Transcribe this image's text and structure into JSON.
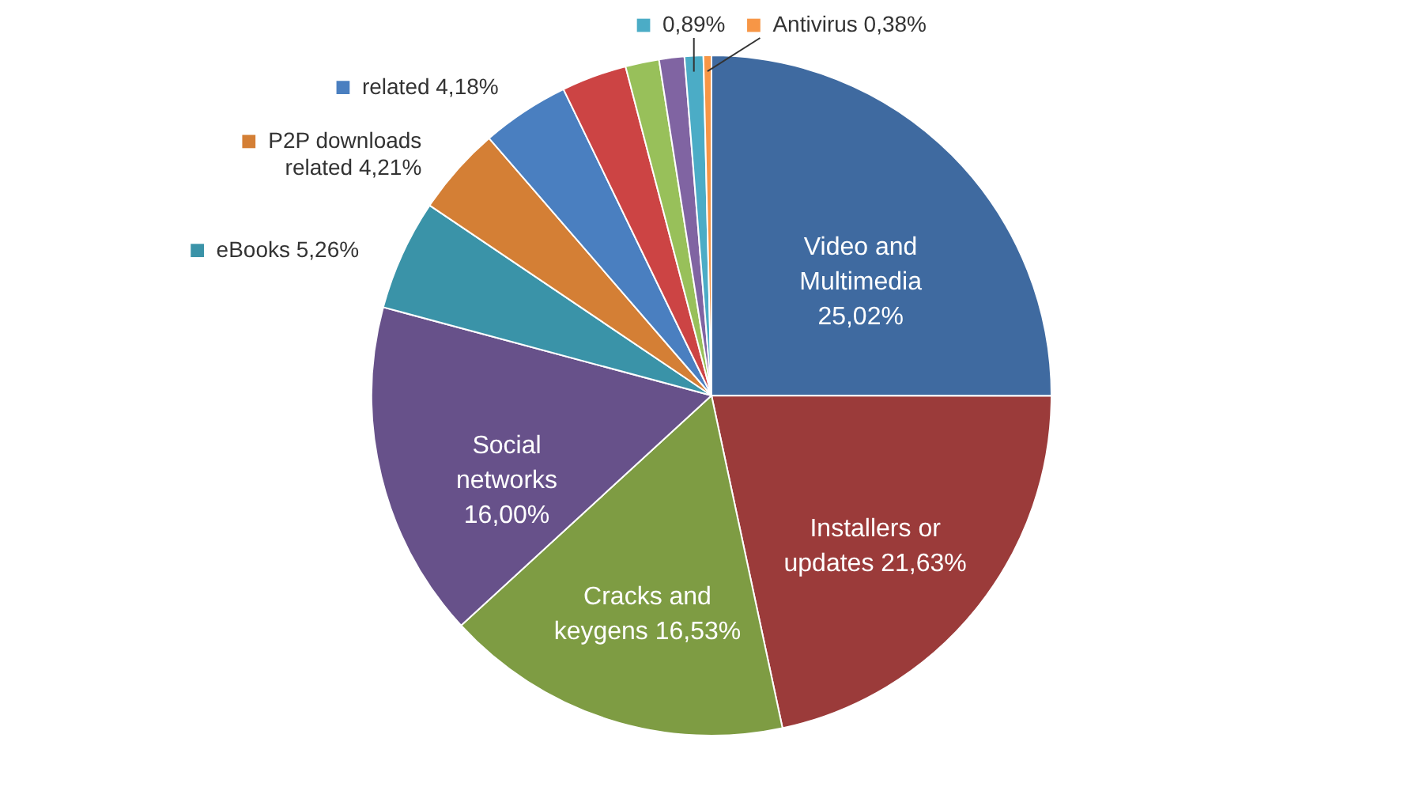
{
  "chart_data": {
    "type": "pie",
    "legend": "top",
    "categories": [
      "Video and Multimedia",
      "Installers or updates",
      "Cracks and keygens",
      "Social networks",
      "eBooks",
      "P2P downloads related",
      "related",
      null,
      null,
      null,
      null,
      "Antivirus"
    ],
    "values": [
      25.02,
      21.63,
      16.53,
      16.0,
      5.26,
      4.21,
      4.18,
      3.1,
      1.6,
      1.2,
      0.89,
      0.38
    ],
    "value_labels": [
      "25,02%",
      "21,63%",
      "16,53%",
      "16,00%",
      "5,26%",
      "4,21%",
      "4,18%",
      null,
      null,
      null,
      "0,89%",
      "0,38%"
    ],
    "colors": [
      "#3f6aa0",
      "#9b3b3a",
      "#7e9c43",
      "#67518a",
      "#3a93a8",
      "#d47f35",
      "#4a7fc0",
      "#cc4444",
      "#98c05a",
      "#8064a2",
      "#4bacc6",
      "#f79646"
    ]
  }
}
